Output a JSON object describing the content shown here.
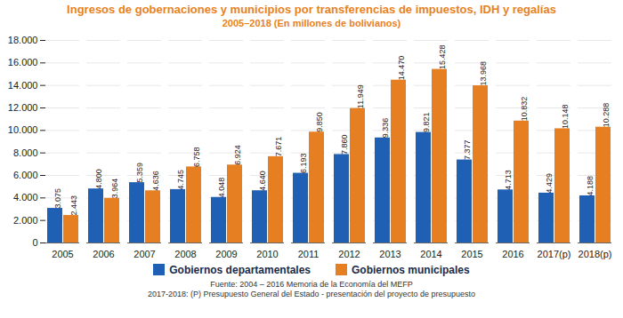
{
  "chart_data": {
    "type": "bar",
    "title": "Ingresos de gobernaciones y municipios por transferencias de impuestos, IDH y regalías",
    "subtitle": "2005–2018 (En millones de bolivianos)",
    "categories": [
      "2005",
      "2006",
      "2007",
      "2008",
      "2009",
      "2010",
      "2011",
      "2012",
      "2013",
      "2014",
      "2015",
      "2016",
      "2017(p)",
      "2018(p)"
    ],
    "series": [
      {
        "name": "Gobiernos departamentales",
        "color": "#1f5fb4",
        "values": [
          3075,
          4800,
          5359,
          4745,
          4048,
          4640,
          6193,
          7860,
          9336,
          9821,
          7377,
          4713,
          4429,
          4188
        ],
        "value_labels": [
          "3.075",
          "4.800",
          "5.359",
          "4.745",
          "4.048",
          "4.640",
          "6.193",
          "7.860",
          "9.336",
          "9.821",
          "7.377",
          "4.713",
          "4.429",
          "4.188"
        ]
      },
      {
        "name": "Gobiernos municipales",
        "color": "#e67e22",
        "values": [
          2443,
          3964,
          4636,
          6758,
          6924,
          7671,
          9850,
          11949,
          14470,
          15428,
          13968,
          10832,
          10148,
          10288
        ],
        "value_labels": [
          "2.443",
          "3.964",
          "4.636",
          "6.758",
          "6.924",
          "7.671",
          "9.850",
          "11.949",
          "14.470",
          "15.428",
          "13.968",
          "10.832",
          "10.148",
          "10.288"
        ]
      }
    ],
    "ylim": [
      0,
      18000
    ],
    "yticks": [
      0,
      {
        "value": 2000,
        "label": "2.000"
      },
      {
        "value": 4000,
        "label": "4.000"
      },
      {
        "value": 6000,
        "label": "6.000"
      },
      {
        "value": 8000,
        "label": "8.000"
      },
      {
        "value": 10000,
        "label": "10.000"
      },
      {
        "value": 12000,
        "label": "12.000"
      },
      {
        "value": 14000,
        "label": "14.000"
      },
      {
        "value": 16000,
        "label": "16.000"
      },
      {
        "value": 18000,
        "label": "18.000"
      }
    ],
    "grid": true,
    "legend": "bottom",
    "data_labels": true,
    "annotations": [
      "Fuente: 2004 – 2016 Memoria de la Economía del MEFP",
      "2017-2018: (P) Presupuesto General del Estado - presentación del proyecto de presupuesto"
    ]
  }
}
